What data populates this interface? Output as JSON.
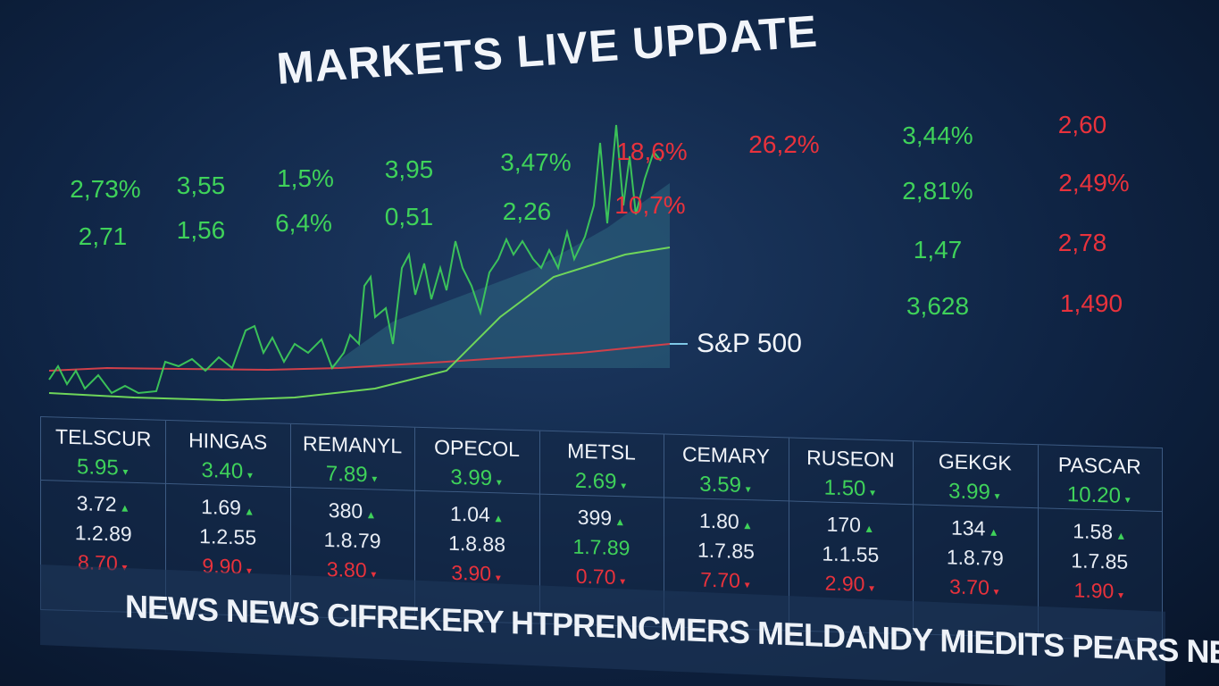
{
  "header": {
    "title": "MARKETS LIVE UPDATE"
  },
  "chart_label": "S&P 500",
  "quotes": [
    {
      "text": "2,73%",
      "color": "#3fd25a"
    },
    {
      "text": "3,55",
      "color": "#3fd25a"
    },
    {
      "text": "1,5%",
      "color": "#3fd25a"
    },
    {
      "text": "3,95",
      "color": "#3fd25a"
    },
    {
      "text": "3,47%",
      "color": "#3fd25a"
    },
    {
      "text": "18,6%",
      "color": "#e8323c"
    },
    {
      "text": "2,71",
      "color": "#3fd25a"
    },
    {
      "text": "1,56",
      "color": "#3fd25a"
    },
    {
      "text": "6,4%",
      "color": "#3fd25a"
    },
    {
      "text": "0,51",
      "color": "#3fd25a"
    },
    {
      "text": "2,26",
      "color": "#3fd25a"
    },
    {
      "text": "10,7%",
      "color": "#e8323c"
    },
    {
      "text": "26,2%",
      "color": "#e8323c"
    },
    {
      "text": "3,44%",
      "color": "#3fd25a"
    },
    {
      "text": "2,81%",
      "color": "#3fd25a"
    },
    {
      "text": "1,47",
      "color": "#3fd25a"
    },
    {
      "text": "3,628",
      "color": "#3fd25a"
    },
    {
      "text": "2,60",
      "color": "#e8323c"
    },
    {
      "text": "2,49%",
      "color": "#e8323c"
    },
    {
      "text": "2,78",
      "color": "#e8323c"
    },
    {
      "text": "1,490",
      "color": "#e8323c"
    }
  ],
  "table": {
    "columns": [
      {
        "name": "TELSCUR",
        "quote": "5.95",
        "rows": [
          "3.72",
          "1.2.89",
          "8.70"
        ]
      },
      {
        "name": "HINGAS",
        "quote": "3.40",
        "rows": [
          "1.69",
          "1.2.55",
          "9.90"
        ]
      },
      {
        "name": "REMANYL",
        "quote": "7.89",
        "rows": [
          "380",
          "1.8.79",
          "3.80"
        ]
      },
      {
        "name": "OPECOL",
        "quote": "3.99",
        "rows": [
          "1.04",
          "1.8.88",
          "3.90"
        ]
      },
      {
        "name": "METSL",
        "quote": "2.69",
        "rows": [
          "399",
          "1.7.89",
          "0.70"
        ]
      },
      {
        "name": "CEMARY",
        "quote": "3.59",
        "rows": [
          "1.80",
          "1.7.85",
          "7.70"
        ]
      },
      {
        "name": "RUSEON",
        "quote": "1.50",
        "rows": [
          "170",
          "1.1.55",
          "2.90"
        ]
      },
      {
        "name": "GEKGK",
        "quote": "3.99",
        "rows": [
          "134",
          "1.8.79",
          "3.70"
        ]
      },
      {
        "name": "PASCAR",
        "quote": "10.20",
        "rows": [
          "1.58",
          "1.7.85",
          "1.90"
        ]
      }
    ]
  },
  "ticker": "NEWS NEWS CIFREKERY HTPRENCMERS MELDANDY MIEDITS PEARS NEWS"
}
